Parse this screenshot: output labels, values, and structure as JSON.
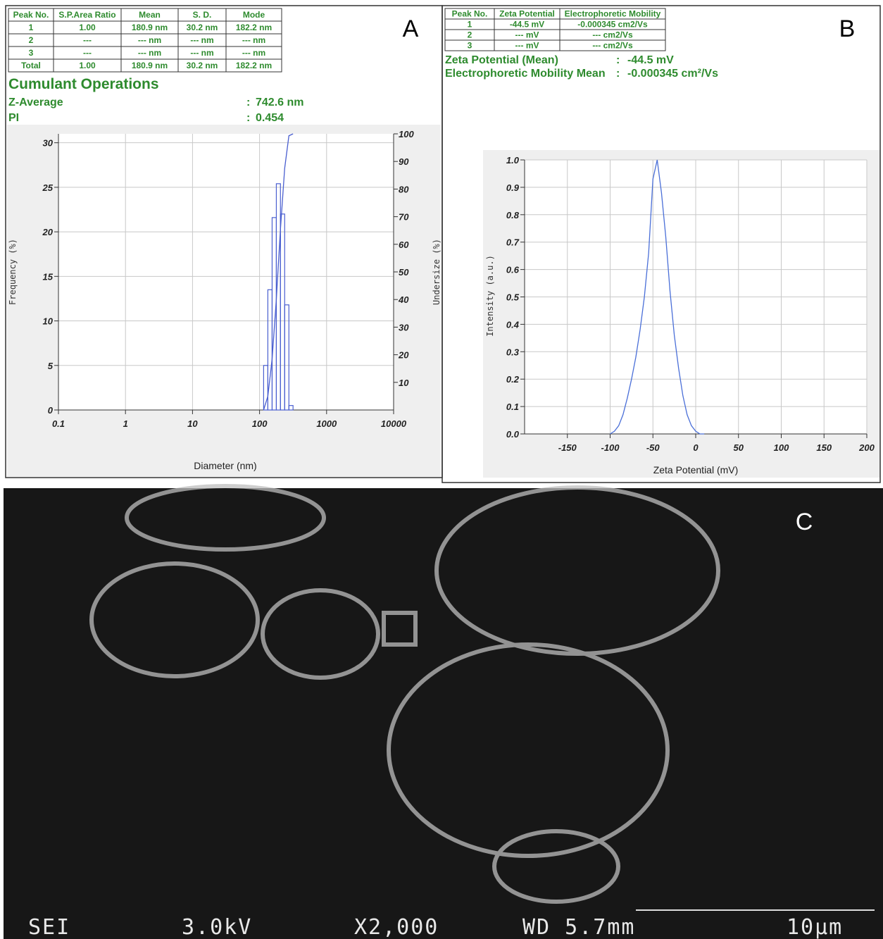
{
  "panel_a": {
    "label": "A",
    "table": {
      "header": [
        "Peak No.",
        "S.P.Area Ratio",
        "Mean",
        "S. D.",
        "Mode"
      ],
      "rows": [
        [
          "1",
          "1.00",
          "180.9 nm",
          "30.2 nm",
          "182.2 nm"
        ],
        [
          "2",
          "---",
          "--- nm",
          "--- nm",
          "--- nm"
        ],
        [
          "3",
          "---",
          "--- nm",
          "--- nm",
          "--- nm"
        ],
        [
          "Total",
          "1.00",
          "180.9 nm",
          "30.2 nm",
          "182.2 nm"
        ]
      ]
    },
    "section_title": "Cumulant Operations",
    "separator": ":",
    "results": [
      {
        "label": "Z-Average",
        "value": "742.6 nm"
      },
      {
        "label": "PI",
        "value": "0.454"
      }
    ]
  },
  "panel_b": {
    "label": "B",
    "table": {
      "header": [
        "Peak No.",
        "Zeta Potential",
        "Electrophoretic Mobility"
      ],
      "rows": [
        [
          "1",
          "-44.5 mV",
          "-0.000345 cm2/Vs"
        ],
        [
          "2",
          "--- mV",
          "--- cm2/Vs"
        ],
        [
          "3",
          "--- mV",
          "--- cm2/Vs"
        ]
      ]
    },
    "separator": ":",
    "results": [
      {
        "label": "Zeta Potential (Mean)",
        "value": "-44.5 mV"
      },
      {
        "label": "Electrophoretic Mobility Mean",
        "value": "-0.000345 cm²/Vs"
      }
    ]
  },
  "chart_data": [
    {
      "type": "histogram",
      "xlabel": "Diameter (nm)",
      "ylabel": "Frequency (%)",
      "y2label": "Undersize (%)",
      "xscale": "log",
      "xlim": [
        0.1,
        10000
      ],
      "xticks": [
        0.1,
        1,
        10,
        100,
        1000,
        10000
      ],
      "ylim": [
        0,
        31
      ],
      "yticks": [
        0,
        5,
        10,
        15,
        20,
        25,
        30
      ],
      "y2lim": [
        0,
        100
      ],
      "y2ticks": [
        10,
        20,
        30,
        40,
        50,
        60,
        70,
        80,
        90,
        100
      ],
      "grid": true,
      "color": "#4a5fd0",
      "bins": [
        115,
        133,
        154,
        178,
        205,
        237,
        274,
        316
      ],
      "values": [
        5.0,
        13.5,
        21.6,
        25.4,
        22.0,
        11.8,
        0.5
      ],
      "line": {
        "axis": "y2",
        "color": "#4a5fd0",
        "x": [
          115,
          133,
          154,
          178,
          205,
          237,
          274,
          316
        ],
        "values": [
          0,
          5,
          18.5,
          40.1,
          65.5,
          87.5,
          99.3,
          100
        ]
      }
    },
    {
      "type": "line",
      "xlabel": "Zeta Potential (mV)",
      "ylabel": "Intensity (a.u.)",
      "xlim": [
        -200,
        200
      ],
      "xticks": [
        -150,
        -100,
        -50,
        0,
        50,
        100,
        150,
        200
      ],
      "ylim": [
        0,
        1.0
      ],
      "yticks": [
        {
          "value": 0,
          "label": "0.0"
        },
        0.1,
        0.2,
        0.3,
        0.4,
        0.5,
        0.6,
        0.7,
        0.8,
        0.9,
        {
          "value": 1,
          "label": "1.0"
        }
      ],
      "grid": true,
      "color": "#4a6fd8",
      "x": [
        -100,
        -95,
        -90,
        -85,
        -80,
        -75,
        -70,
        -65,
        -60,
        -55,
        -50,
        -45,
        -40,
        -35,
        -30,
        -25,
        -20,
        -15,
        -10,
        -5,
        0,
        5,
        10
      ],
      "values": [
        0,
        0.01,
        0.03,
        0.07,
        0.13,
        0.2,
        0.28,
        0.38,
        0.5,
        0.66,
        0.93,
        1.0,
        0.88,
        0.72,
        0.52,
        0.36,
        0.24,
        0.14,
        0.07,
        0.03,
        0.01,
        0,
        0
      ]
    }
  ],
  "panel_c": {
    "label": "C",
    "sem_labels": [
      "SEI",
      "3.0kV",
      "X2,000",
      "WD 5.7mm",
      "10µm"
    ]
  }
}
